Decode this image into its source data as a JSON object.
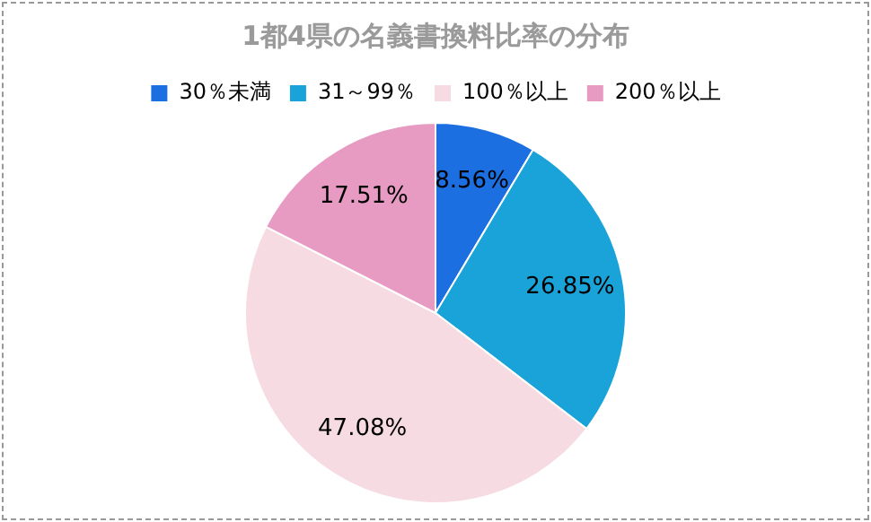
{
  "chart_data": {
    "type": "pie",
    "title": "1都4県の名義書換料比率の分布",
    "categories": [
      "30％未満",
      "31～99％",
      "100％以上",
      "200％以上"
    ],
    "values": [
      8.56,
      26.85,
      47.08,
      17.51
    ],
    "colors": [
      "#1b6fe0",
      "#1aa3d8",
      "#f6dbe3",
      "#e79bc2"
    ],
    "value_labels": [
      "8.56%",
      "26.85%",
      "47.08%",
      "17.51%"
    ],
    "legend": "top"
  }
}
